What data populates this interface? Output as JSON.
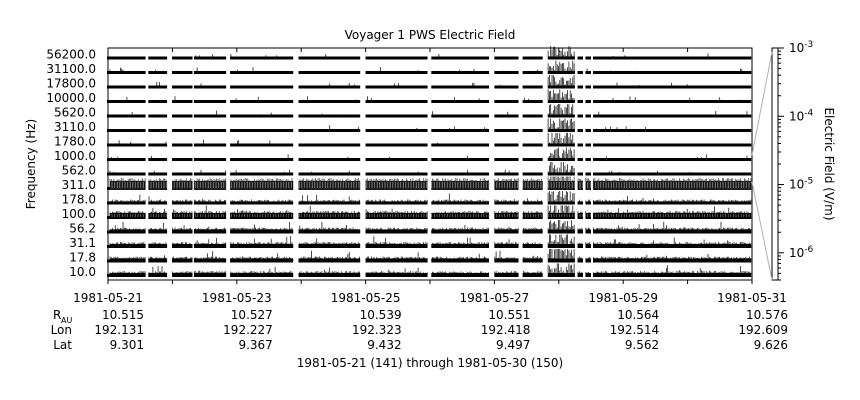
{
  "chart_data": {
    "type": "spectrogram-stack",
    "title": "Voyager 1 PWS Electric Field",
    "ylabel": "Frequency (Hz)",
    "right_label": "Electric Field (V/m)",
    "footer": "1981-05-21 (141) through 1981-05-30 (150)",
    "channels": [
      "56200.0",
      "31100.0",
      "17800.0",
      "10000.0",
      "5620.0",
      "3110.0",
      "1780.0",
      "1000.0",
      "562.0",
      "311.0",
      "178.0",
      "100.0",
      "56.2",
      "31.1",
      "17.8",
      "10.0"
    ],
    "x_ticks": [
      "1981-05-21",
      "1981-05-23",
      "1981-05-25",
      "1981-05-27",
      "1981-05-29",
      "1981-05-31"
    ],
    "xlim": [
      "1981-05-21",
      "1981-05-31"
    ],
    "ephemeris": {
      "row_labels": {
        "r": "R",
        "r_sub": "AU",
        "lon": "Lon",
        "lat": "Lat"
      },
      "r": [
        "10.515",
        "10.527",
        "10.539",
        "10.551",
        "10.564",
        "10.576"
      ],
      "lon": [
        "192.131",
        "192.227",
        "192.323",
        "192.418",
        "192.514",
        "192.609"
      ],
      "lat": [
        "9.301",
        "9.367",
        "9.432",
        "9.497",
        "9.562",
        "9.626"
      ]
    },
    "colorbar": {
      "scale": "log",
      "range": [
        4e-07,
        0.001
      ],
      "tick_labels": [
        {
          "value": 0.001,
          "base": "10",
          "exp": "-3"
        },
        {
          "value": 0.0001,
          "base": "10",
          "exp": "-4"
        },
        {
          "value": 1e-05,
          "base": "10",
          "exp": "-5"
        },
        {
          "value": 1e-06,
          "base": "10",
          "exp": "-6"
        }
      ]
    },
    "data_gaps": [
      [
        "1981-05-21T14:00",
        "1981-05-21T15:00"
      ],
      [
        "1981-05-21T22:00",
        "1981-05-22T00:00"
      ],
      [
        "1981-05-22T07:30",
        "1981-05-22T08:00"
      ],
      [
        "1981-05-22T20:00",
        "1981-05-22T21:30"
      ],
      [
        "1981-05-23T21:00",
        "1981-05-23T23:00"
      ],
      [
        "1981-05-24T22:00",
        "1981-05-25T00:00"
      ],
      [
        "1981-05-25T23:00",
        "1981-05-26T00:30"
      ],
      [
        "1981-05-26T22:00",
        "1981-05-27T00:00"
      ],
      [
        "1981-05-27T09:00",
        "1981-05-27T10:30"
      ],
      [
        "1981-05-27T18:00",
        "1981-05-27T20:00"
      ],
      [
        "1981-05-28T06:00",
        "1981-05-28T07:00"
      ],
      [
        "1981-05-28T09:00",
        "1981-05-28T10:00"
      ],
      [
        "1981-05-28T12:00",
        "1981-05-28T12:45"
      ]
    ],
    "bright_intervals": [
      [
        "1981-05-27T20:00",
        "1981-05-28T06:00"
      ]
    ]
  }
}
